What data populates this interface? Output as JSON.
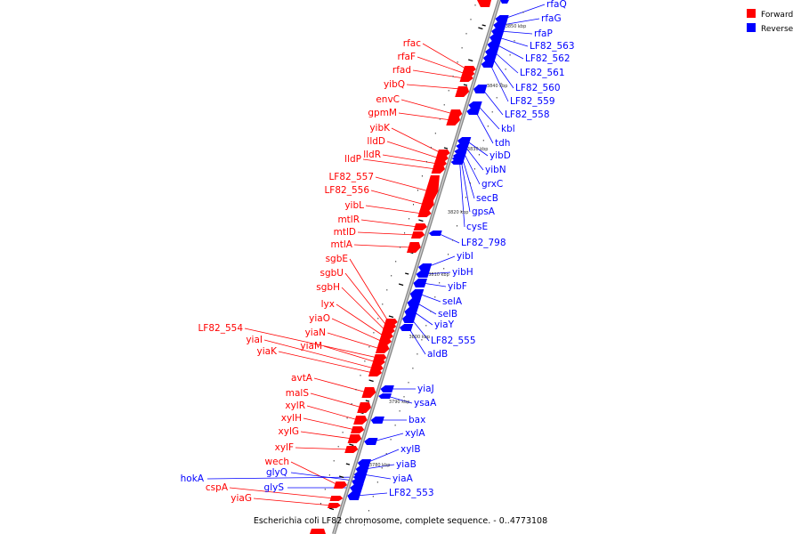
{
  "caption": "Escherichia coli LF82 chromosome, complete sequence. - 0..4773108",
  "legend": {
    "forward_label": "Forward",
    "reverse_label": "Reverse",
    "forward_color": "#ff0000",
    "reverse_color": "#0000ff"
  },
  "scale_labels": [
    {
      "text": "3850 kbp"
    },
    {
      "text": "3840 kbp"
    },
    {
      "text": "3830 kbp"
    },
    {
      "text": "3820 kbp"
    },
    {
      "text": "3810 kbp"
    },
    {
      "text": "3800 kbp"
    },
    {
      "text": "3790 kbp"
    },
    {
      "text": "3780 kbp"
    }
  ],
  "forward_genes": [
    "rfac",
    "rfaF",
    "rfad",
    "yibQ",
    "envC",
    "gpmM",
    "yibK",
    "lldD",
    "lldR",
    "lldP",
    "LF82_557",
    "LF82_556",
    "yibL",
    "mtlR",
    "mtlD",
    "mtlA",
    "sgbE",
    "sgbU",
    "sgbH",
    "lyx",
    "yiaO",
    "yiaN",
    "LF82_554",
    "yiaM",
    "yiaI",
    "yiaK",
    "avtA",
    "malS",
    "xylR",
    "xylH",
    "xylG",
    "xylF",
    "wech",
    "cspA",
    "yiaG"
  ],
  "reverse_genes": [
    "rfaQ",
    "rfaG",
    "rfaP",
    "LF82_563",
    "LF82_562",
    "LF82_561",
    "LF82_560",
    "LF82_559",
    "LF82_558",
    "kbl",
    "tdh",
    "yibD",
    "yibN",
    "grxC",
    "secB",
    "gpsA",
    "cysE",
    "LF82_798",
    "yibI",
    "yibH",
    "yibF",
    "selA",
    "selB",
    "yiaY",
    "LF82_555",
    "aldB",
    "yiaJ",
    "ysaA",
    "bax",
    "xylA",
    "xylB",
    "yiaB",
    "yiaA",
    "LF82_553",
    "hokA",
    "glyQ",
    "glyS"
  ]
}
